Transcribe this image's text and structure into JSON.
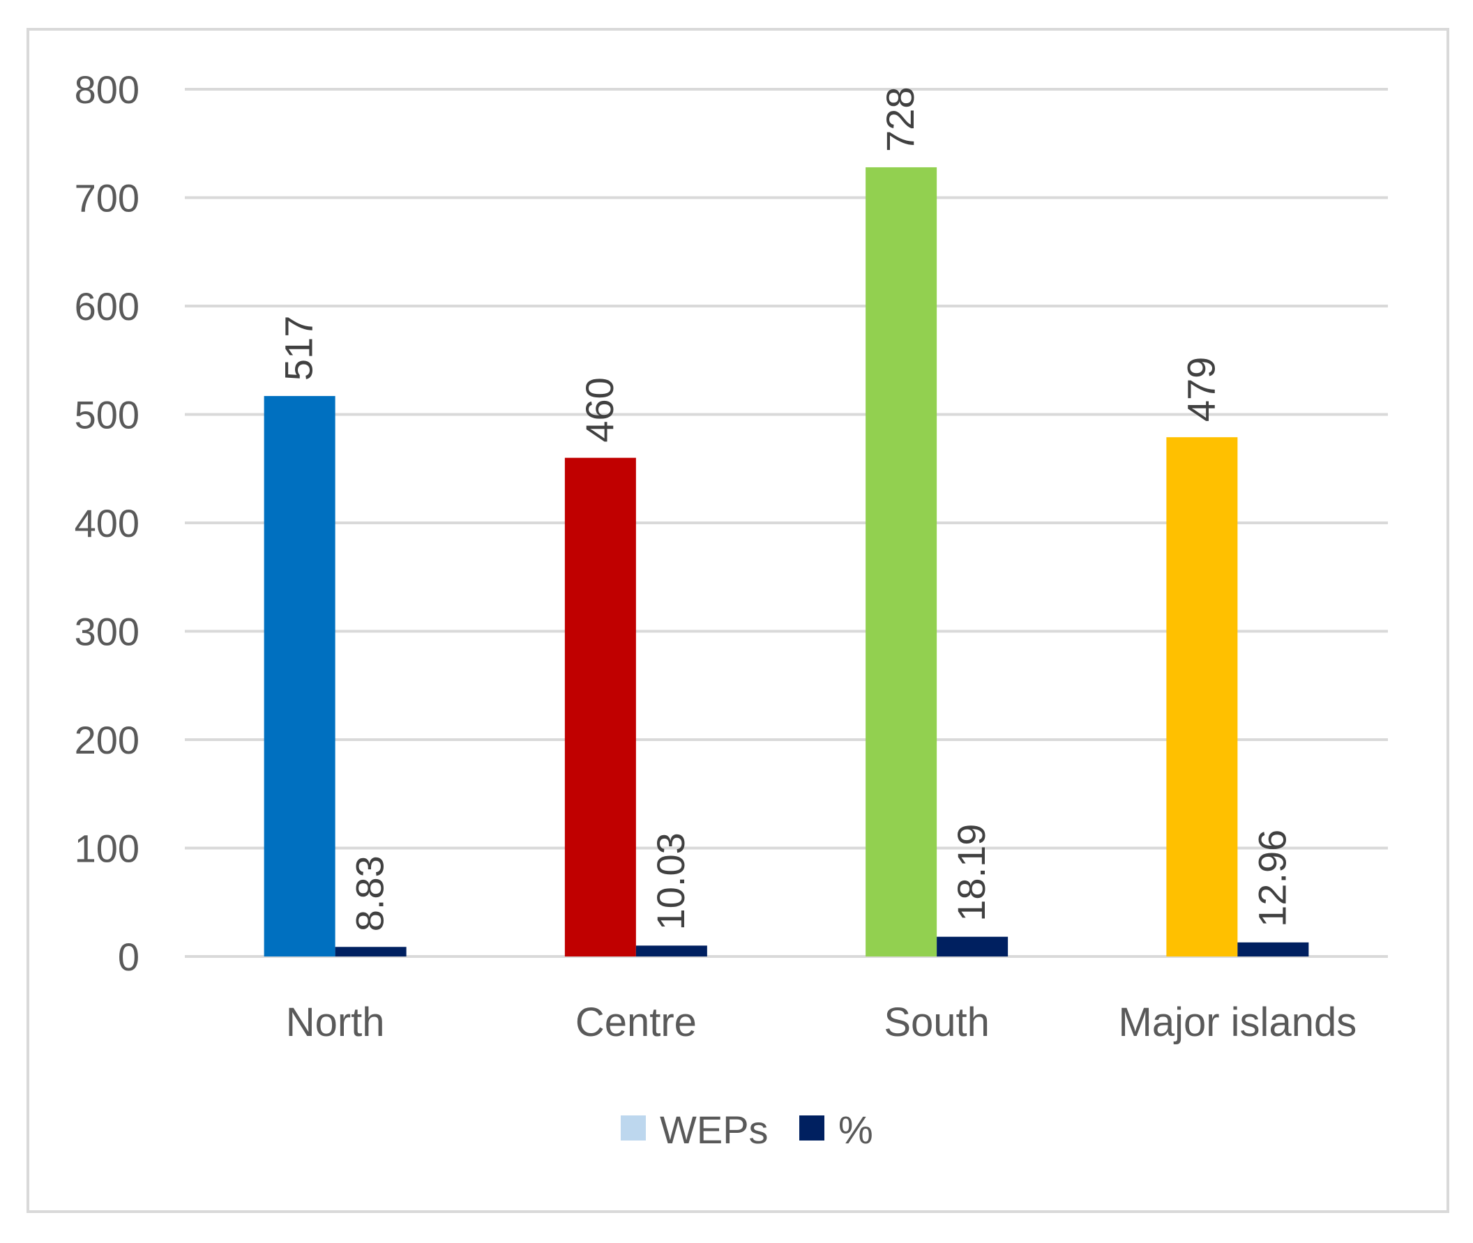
{
  "chart_data": {
    "type": "bar",
    "categories": [
      "North",
      "Centre",
      "South",
      "Major islands"
    ],
    "series": [
      {
        "name": "WEPs",
        "values": [
          517,
          460,
          728,
          479
        ],
        "value_labels": [
          "517",
          "460",
          "728",
          "479"
        ],
        "legend_color": "#bdd7ee",
        "bar_colors": [
          "#0070c0",
          "#c00000",
          "#92d050",
          "#ffc000"
        ]
      },
      {
        "name": "%",
        "values": [
          8.83,
          10.03,
          18.19,
          12.96
        ],
        "value_labels": [
          "8.83",
          "10.03",
          "18.19",
          "12.96"
        ],
        "legend_color": "#002060",
        "bar_colors": [
          "#002060",
          "#002060",
          "#002060",
          "#002060"
        ]
      }
    ],
    "yticks": [
      "0",
      "100",
      "200",
      "300",
      "400",
      "500",
      "600",
      "700",
      "800"
    ],
    "ylim": [
      0,
      800
    ],
    "grid": true,
    "legend_position": "bottom",
    "colors": {
      "gridline": "#d9d9d9",
      "axis_text": "#595959"
    }
  }
}
